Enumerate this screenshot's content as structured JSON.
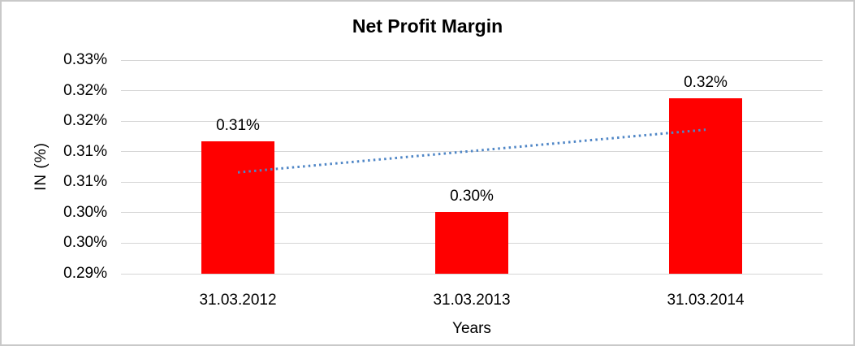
{
  "window": {
    "background": "#ffffff",
    "border_color": "#c9c9c9"
  },
  "colors": {
    "bar": "#ff0000",
    "trendline": "#4f86c6",
    "gridline": "#d6d6d6",
    "text": "#000000"
  },
  "chart_data": {
    "type": "bar",
    "title": "Net Profit Margin",
    "xlabel": "Years",
    "ylabel": "IN (%)",
    "categories": [
      "31.03.2012",
      "31.03.2013",
      "31.03.2014"
    ],
    "series": [
      {
        "name": "Net Profit Margin",
        "color": "#ff0000",
        "values": [
          0.3117,
          0.3001,
          0.3187
        ],
        "labels": [
          "0.31%",
          "0.30%",
          "0.32%"
        ]
      }
    ],
    "y_ticks": [
      {
        "value": 0.325,
        "label": "0.33%"
      },
      {
        "value": 0.32,
        "label": "0.32%"
      },
      {
        "value": 0.315,
        "label": "0.32%"
      },
      {
        "value": 0.31,
        "label": "0.31%"
      },
      {
        "value": 0.305,
        "label": "0.31%"
      },
      {
        "value": 0.3,
        "label": "0.30%"
      },
      {
        "value": 0.295,
        "label": "0.30%"
      },
      {
        "value": 0.29,
        "label": "0.29%"
      }
    ],
    "ylim": [
      0.29,
      0.325
    ],
    "grid": true,
    "legend": false,
    "trendline": {
      "type": "linear",
      "style": "dotted",
      "color": "#4f86c6",
      "start_value": 0.3066,
      "end_value": 0.3136
    }
  }
}
